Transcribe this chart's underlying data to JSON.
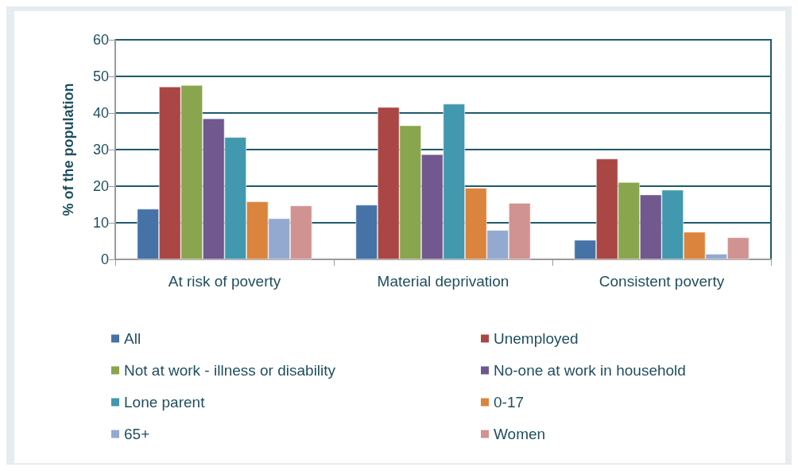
{
  "chart_data": {
    "type": "bar",
    "ylabel": "% of the population",
    "categories": [
      "At risk of poverty",
      "Material deprivation",
      "Consistent poverty"
    ],
    "series": [
      {
        "name": "All",
        "color": "#4573a7",
        "values": [
          13.8,
          14.9,
          5.3
        ]
      },
      {
        "name": "Unemployed",
        "color": "#aa4644",
        "values": [
          47.2,
          41.6,
          27.5
        ]
      },
      {
        "name": "Not at work - illness or disability",
        "color": "#89a54e",
        "values": [
          47.6,
          36.6,
          21.1
        ]
      },
      {
        "name": "No-one at work in household",
        "color": "#71588f",
        "values": [
          38.5,
          28.7,
          17.7
        ]
      },
      {
        "name": "Lone parent",
        "color": "#4198af",
        "values": [
          33.4,
          42.5,
          19.0
        ]
      },
      {
        "name": "0-17",
        "color": "#db843d",
        "values": [
          15.8,
          19.5,
          7.5
        ]
      },
      {
        "name": "65+",
        "color": "#93a9cf",
        "values": [
          11.2,
          8.0,
          1.5
        ]
      },
      {
        "name": "Women",
        "color": "#d19392",
        "values": [
          14.7,
          15.4,
          6.0
        ]
      }
    ],
    "ylim": [
      0,
      60
    ],
    "yticks": [
      0,
      10,
      20,
      30,
      40,
      50,
      60
    ],
    "grid": "y",
    "legend": "bottom"
  }
}
